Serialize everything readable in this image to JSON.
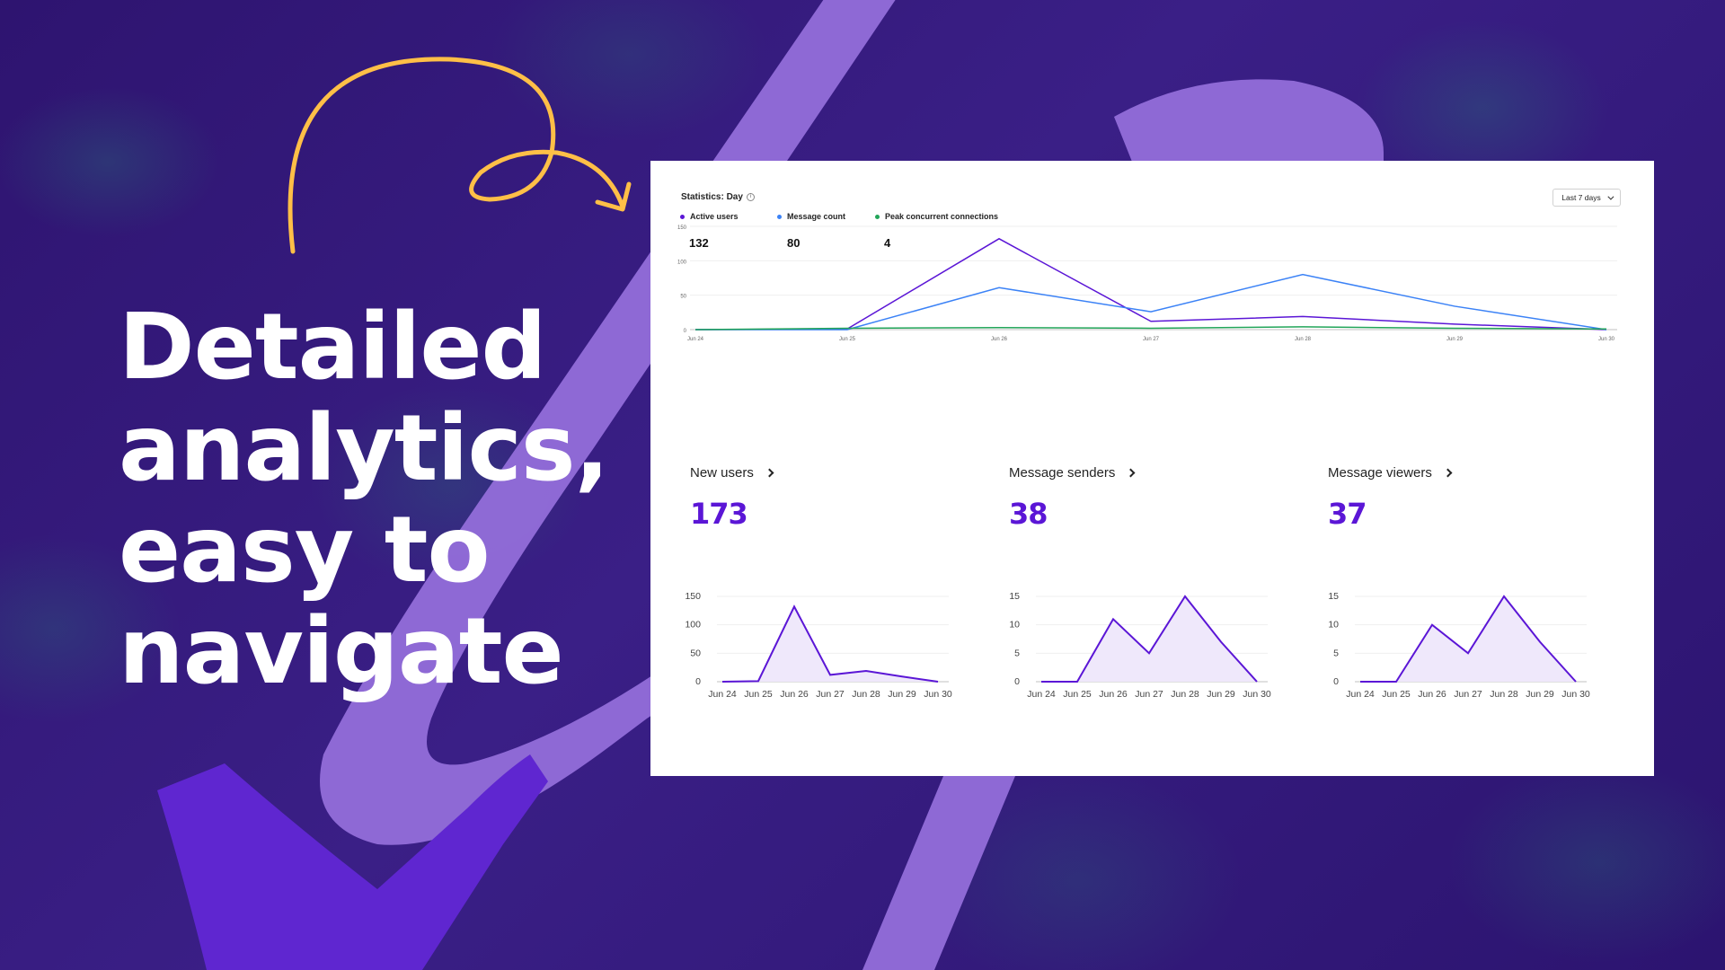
{
  "hero": {
    "headline_lines": [
      "Detailed",
      "analytics,",
      "easy to",
      "navigate"
    ]
  },
  "colors": {
    "background": "#33197a",
    "accent_purple": "#5b16d6",
    "active_users": "#5b16d6",
    "message_count": "#3b82f6",
    "peak_connections": "#22a559",
    "arrow": "#ffbf47",
    "brush": "#5f26d0",
    "road": "#9670dc"
  },
  "dashboard": {
    "stats_title": "Statistics: Day",
    "info_icon": "info-icon",
    "range_select": {
      "label": "Last 7 days",
      "icon": "chevron-down-icon"
    },
    "legend": [
      {
        "label": "Active users",
        "value": "132",
        "color": "#5b16d6"
      },
      {
        "label": "Message count",
        "value": "80",
        "color": "#3b82f6"
      },
      {
        "label": "Peak concurrent connections",
        "value": "4",
        "color": "#22a559"
      }
    ],
    "cards": [
      {
        "title": "New users",
        "value": "173",
        "icon": "chevron-right-icon"
      },
      {
        "title": "Message senders",
        "value": "38",
        "icon": "chevron-right-icon"
      },
      {
        "title": "Message viewers",
        "value": "37",
        "icon": "chevron-right-icon"
      }
    ]
  },
  "chart_data": [
    {
      "type": "line",
      "title": "Statistics: Day",
      "categories": [
        "Jun 24",
        "Jun 25",
        "Jun 26",
        "Jun 27",
        "Jun 28",
        "Jun 29",
        "Jun 30"
      ],
      "series": [
        {
          "name": "Active users",
          "values": [
            0,
            1,
            132,
            12,
            19,
            8,
            0
          ]
        },
        {
          "name": "Message count",
          "values": [
            0,
            0,
            61,
            26,
            80,
            34,
            0
          ]
        },
        {
          "name": "Peak concurrent connections",
          "values": [
            0,
            2,
            3,
            2,
            4,
            2,
            1
          ]
        }
      ],
      "yticks": [
        0,
        50,
        100,
        150
      ],
      "ylim": [
        0,
        150
      ],
      "grid": true,
      "legend_position": "top"
    },
    {
      "type": "area",
      "title": "New users",
      "categories": [
        "Jun 24",
        "Jun 25",
        "Jun 26",
        "Jun 27",
        "Jun 28",
        "Jun 29",
        "Jun 30"
      ],
      "values": [
        0,
        1,
        132,
        12,
        19,
        9,
        0
      ],
      "yticks": [
        0,
        50,
        100,
        150
      ],
      "ylim": [
        0,
        150
      ]
    },
    {
      "type": "area",
      "title": "Message senders",
      "categories": [
        "Jun 24",
        "Jun 25",
        "Jun 26",
        "Jun 27",
        "Jun 28",
        "Jun 29",
        "Jun 30"
      ],
      "values": [
        0,
        0,
        11,
        5,
        15,
        7,
        0
      ],
      "yticks": [
        0,
        5,
        10,
        15
      ],
      "ylim": [
        0,
        15
      ]
    },
    {
      "type": "area",
      "title": "Message viewers",
      "categories": [
        "Jun 24",
        "Jun 25",
        "Jun 26",
        "Jun 27",
        "Jun 28",
        "Jun 29",
        "Jun 30"
      ],
      "values": [
        0,
        0,
        10,
        5,
        15,
        7,
        0
      ],
      "yticks": [
        0,
        5,
        10,
        15
      ],
      "ylim": [
        0,
        15
      ]
    }
  ]
}
